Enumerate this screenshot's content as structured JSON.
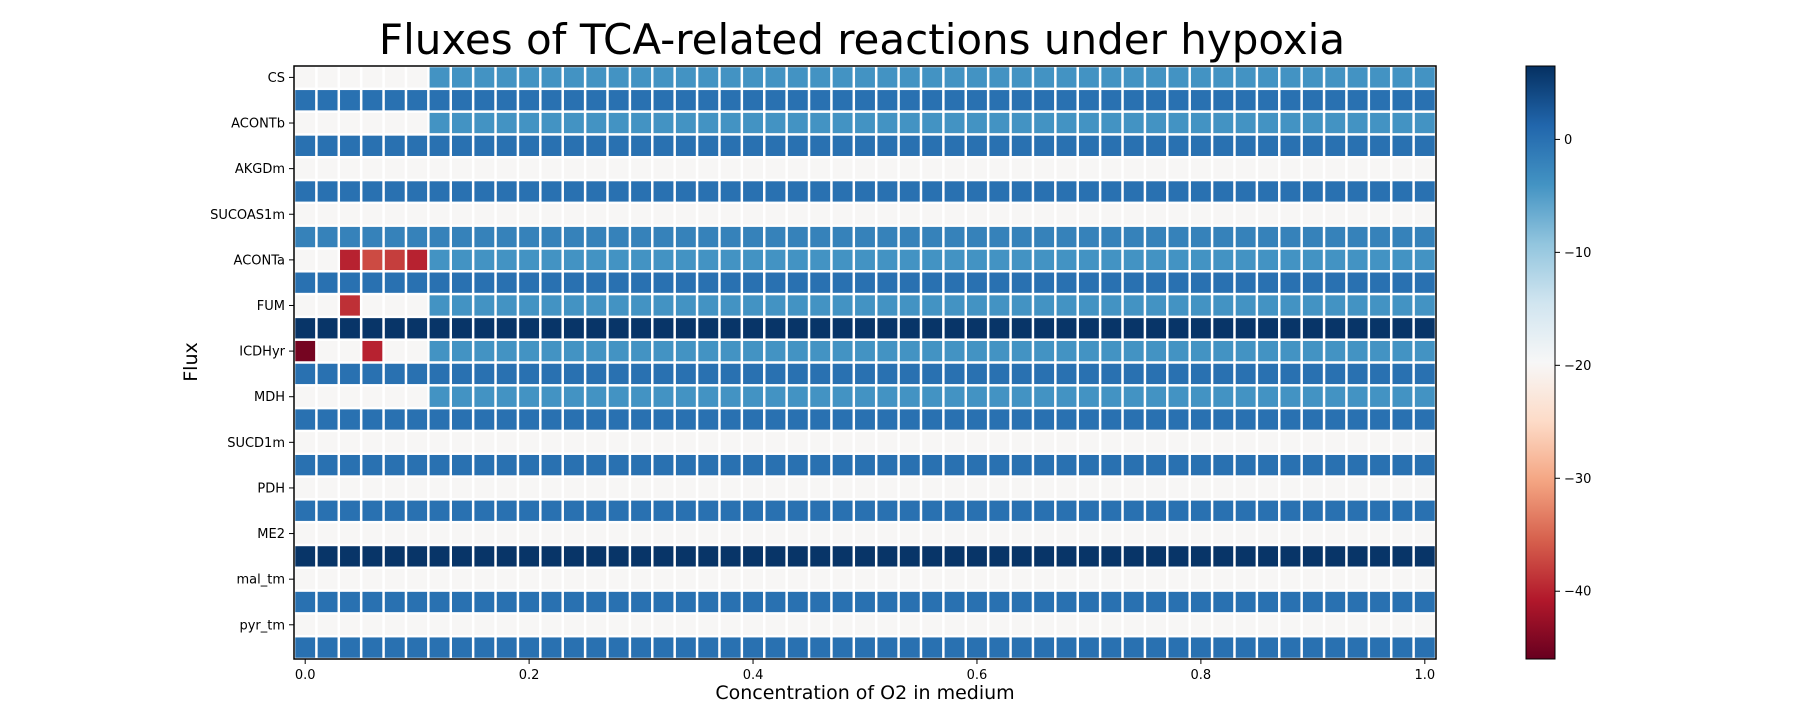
{
  "chart_data": {
    "type": "heatmap",
    "title": "Fluxes of TCA-related reactions under hypoxia",
    "xlabel": "Concentration of O2 in medium",
    "ylabel": "Flux",
    "x_tick_labels": [
      "0.0",
      "0.2",
      "0.4",
      "0.6",
      "0.8",
      "1.0"
    ],
    "x_tick_values": [
      0.0,
      0.2,
      0.4,
      0.6,
      0.8,
      1.0
    ],
    "x": [
      0.0,
      0.02,
      0.04,
      0.06,
      0.08,
      0.1,
      0.12,
      0.14,
      0.16,
      0.18,
      0.2,
      0.22,
      0.24,
      0.26,
      0.28,
      0.3,
      0.32,
      0.34,
      0.36,
      0.38,
      0.4,
      0.42,
      0.44,
      0.46,
      0.48,
      0.5,
      0.52,
      0.54,
      0.56,
      0.58,
      0.6,
      0.62,
      0.64,
      0.66,
      0.68,
      0.7,
      0.72,
      0.74,
      0.76,
      0.78,
      0.8,
      0.82,
      0.84,
      0.86,
      0.88,
      0.9,
      0.92,
      0.94,
      0.96,
      0.98,
      1.0
    ],
    "y_tick_labels": [
      "CS",
      "ACONTb",
      "AKGDm",
      "SUCOAS1m",
      "ACONTa",
      "FUM",
      "ICDHyr",
      "MDH",
      "SUCD1m",
      "PDH",
      "ME2",
      "mal_tm",
      "pyr_tm"
    ],
    "rows": [
      {
        "label": "CS",
        "segments": [
          {
            "len": 6,
            "value": -20
          },
          {
            "len": 45,
            "value": -4
          }
        ]
      },
      {
        "label": "",
        "segments": [
          {
            "len": 51,
            "value": 0
          }
        ]
      },
      {
        "label": "ACONTb",
        "segments": [
          {
            "len": 6,
            "value": -20
          },
          {
            "len": 45,
            "value": -4
          }
        ]
      },
      {
        "label": "",
        "segments": [
          {
            "len": 51,
            "value": 0
          }
        ]
      },
      {
        "label": "AKGDm",
        "segments": [
          {
            "len": 51,
            "value": -20
          }
        ]
      },
      {
        "label": "",
        "segments": [
          {
            "len": 51,
            "value": 0
          }
        ]
      },
      {
        "label": "SUCOAS1m",
        "segments": [
          {
            "len": 51,
            "value": -20
          }
        ]
      },
      {
        "label": "",
        "segments": [
          {
            "len": 51,
            "value": -2
          }
        ]
      },
      {
        "label": "ACONTa",
        "segments": [
          {
            "len": 2,
            "value": -20
          },
          {
            "len": 1,
            "value": -40
          },
          {
            "len": 1,
            "value": -37
          },
          {
            "len": 1,
            "value": -38
          },
          {
            "len": 1,
            "value": -40
          },
          {
            "len": 45,
            "value": -4
          }
        ]
      },
      {
        "label": "",
        "segments": [
          {
            "len": 51,
            "value": 0
          }
        ]
      },
      {
        "label": "FUM",
        "segments": [
          {
            "len": 2,
            "value": -20
          },
          {
            "len": 1,
            "value": -39
          },
          {
            "len": 3,
            "value": -20
          },
          {
            "len": 45,
            "value": -4
          }
        ]
      },
      {
        "label": "",
        "segments": [
          {
            "len": 51,
            "value": 6
          }
        ]
      },
      {
        "label": "ICDHyr",
        "segments": [
          {
            "len": 1,
            "value": -45
          },
          {
            "len": 2,
            "value": -20
          },
          {
            "len": 1,
            "value": -40
          },
          {
            "len": 2,
            "value": -20
          },
          {
            "len": 45,
            "value": -4
          }
        ]
      },
      {
        "label": "",
        "segments": [
          {
            "len": 51,
            "value": 0
          }
        ]
      },
      {
        "label": "MDH",
        "segments": [
          {
            "len": 6,
            "value": -20
          },
          {
            "len": 45,
            "value": -4
          }
        ]
      },
      {
        "label": "",
        "segments": [
          {
            "len": 51,
            "value": 0
          }
        ]
      },
      {
        "label": "SUCD1m",
        "segments": [
          {
            "len": 51,
            "value": -20
          }
        ]
      },
      {
        "label": "",
        "segments": [
          {
            "len": 51,
            "value": 0
          }
        ]
      },
      {
        "label": "PDH",
        "segments": [
          {
            "len": 51,
            "value": -20
          }
        ]
      },
      {
        "label": "",
        "segments": [
          {
            "len": 51,
            "value": 0
          }
        ]
      },
      {
        "label": "ME2",
        "segments": [
          {
            "len": 51,
            "value": -20
          }
        ]
      },
      {
        "label": "",
        "segments": [
          {
            "len": 51,
            "value": 6
          }
        ]
      },
      {
        "label": "mal_tm",
        "segments": [
          {
            "len": 51,
            "value": -20
          }
        ]
      },
      {
        "label": "",
        "segments": [
          {
            "len": 51,
            "value": 0
          }
        ]
      },
      {
        "label": "pyr_tm",
        "segments": [
          {
            "len": 51,
            "value": -20
          }
        ]
      },
      {
        "label": "",
        "segments": [
          {
            "len": 51,
            "value": 0
          }
        ]
      }
    ],
    "colorbar": {
      "colormap": "RdBu",
      "min": -46,
      "max": 6.5,
      "tick_values": [
        0,
        -10,
        -20,
        -30,
        -40
      ],
      "tick_labels": [
        "0",
        "−10",
        "−20",
        "−30",
        "−40"
      ]
    },
    "grid": false,
    "cell_edge_color": "#ffffff"
  }
}
